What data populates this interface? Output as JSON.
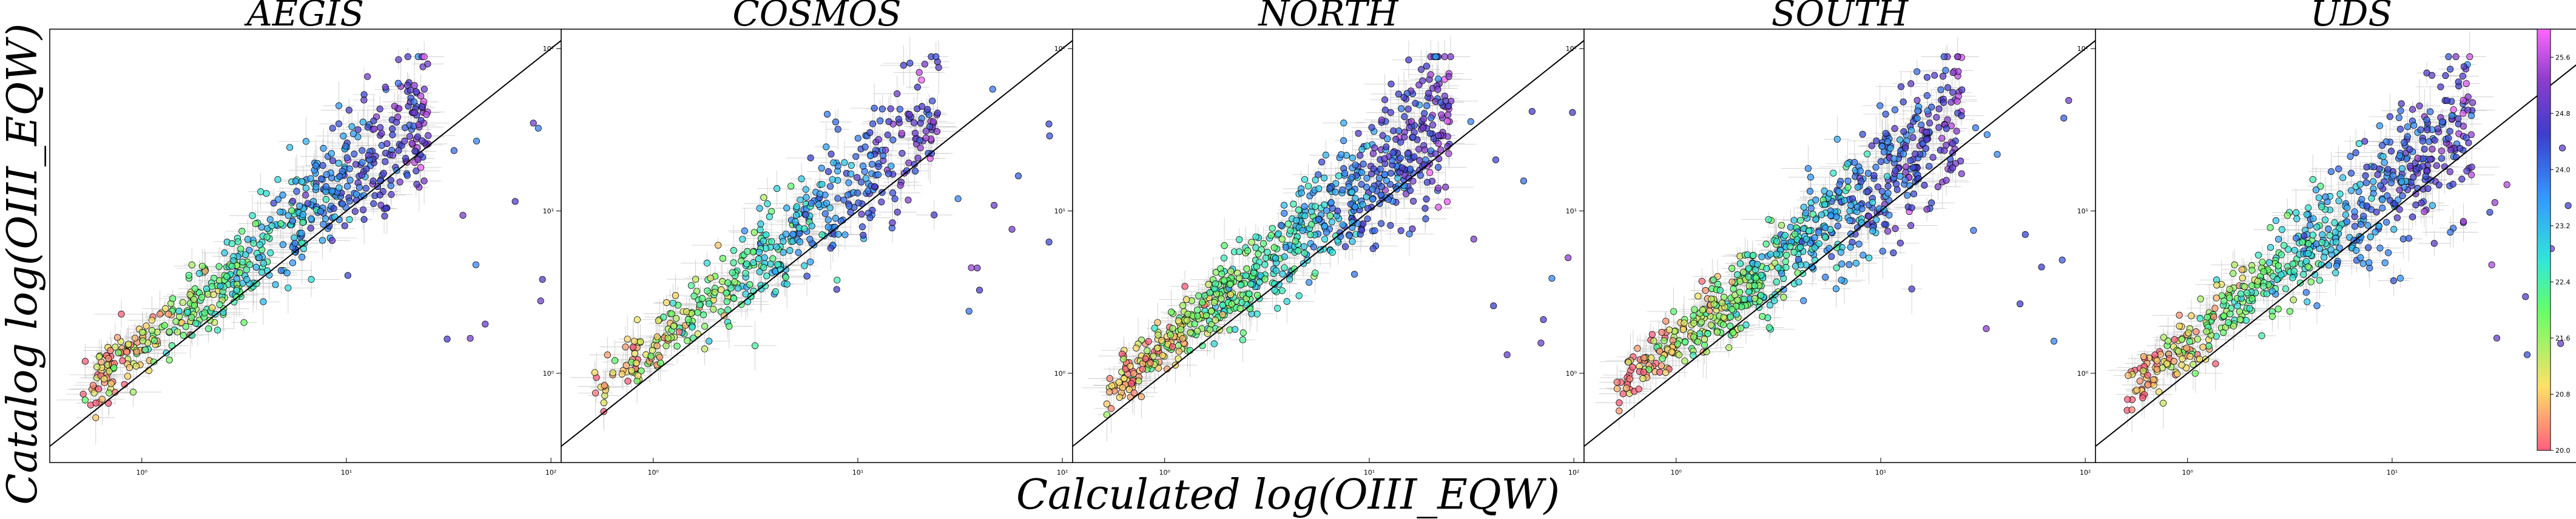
{
  "chart_data": {
    "type": "scatter",
    "xlabel": "Calculated log(OIII_EQW)",
    "ylabel": "Catalog log(OIII_EQW)",
    "x_scale": "log",
    "y_scale": "log",
    "grid": false,
    "reference_line": "y = x",
    "panels": [
      {
        "title": "AEGIS",
        "seed": 11,
        "n": 620,
        "has_outliers": true
      },
      {
        "title": "COSMOS",
        "seed": 23,
        "n": 480,
        "has_outliers": true
      },
      {
        "title": "NORTH",
        "seed": 37,
        "n": 760,
        "has_outliers": true
      },
      {
        "title": "SOUTH",
        "seed": 53,
        "n": 700,
        "has_outliers": true
      },
      {
        "title": "UDS",
        "seed": 71,
        "n": 620,
        "has_outliers": true
      }
    ],
    "xticks": [
      "10⁰",
      "10¹",
      "10²"
    ],
    "yticks": [
      "10⁰",
      "10¹",
      "10²"
    ],
    "colorbar": {
      "label_values": [
        "20.0",
        "20.8",
        "21.6",
        "22.4",
        "23.2",
        "24.0",
        "24.8",
        "25.6"
      ],
      "min": 20.0,
      "max": 26.0,
      "colormap": [
        "#ff5f7e",
        "#ffe066",
        "#66ff66",
        "#33e6d9",
        "#3399ff",
        "#3d3dcc",
        "#8c3dcc",
        "#ff66ff"
      ]
    },
    "marker_edge_color": "#000000",
    "errorbar_color": "#c8c8c8",
    "line_color": "#000000"
  }
}
